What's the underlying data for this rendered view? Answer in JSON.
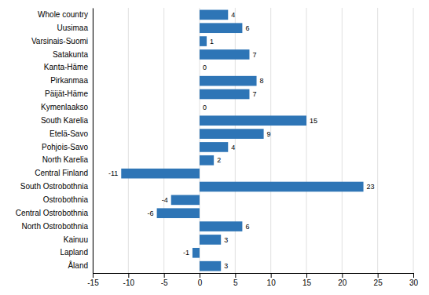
{
  "chart_data": {
    "type": "bar",
    "orientation": "horizontal",
    "categories": [
      "Whole country",
      "Uusimaa",
      "Varsinais-Suomi",
      "Satakunta",
      "Kanta-Häme",
      "Pirkanmaa",
      "Päijät-Häme",
      "Kymenlaakso",
      "South Karelia",
      "Etelä-Savo",
      "Pohjois-Savo",
      "North Karelia",
      "Central Finland",
      "South Ostrobothnia",
      "Ostrobothnia",
      "Central Ostrobothnia",
      "North Ostrobothnia",
      "Kainuu",
      "Lapland",
      "Åland"
    ],
    "values": [
      4,
      6,
      1,
      7,
      0,
      8,
      7,
      0,
      15,
      9,
      4,
      2,
      -11,
      23,
      -4,
      -6,
      6,
      3,
      -1,
      3
    ],
    "color": "#2E75B6",
    "xlim": [
      -15,
      30
    ],
    "xticks": [
      -15,
      -10,
      -5,
      0,
      5,
      10,
      15,
      20,
      25,
      30
    ],
    "grid": true,
    "data_labels": true
  }
}
